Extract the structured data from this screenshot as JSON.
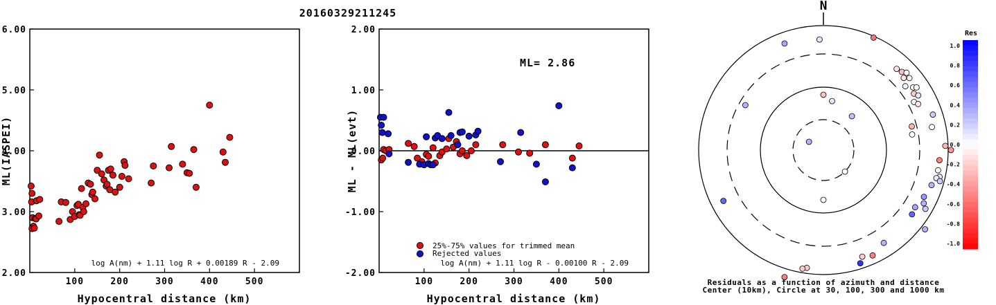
{
  "title": "20160329211245",
  "colors": {
    "red_point": "#dd1111",
    "blue_point": "#1111cc"
  },
  "chart_data": [
    {
      "id": "ml-vs-distance",
      "type": "scatter",
      "xlabel": "Hypocentral distance (km)",
      "ylabel": "ML(IASPEI)",
      "xlim": [
        0,
        600
      ],
      "ylim": [
        2.0,
        6.0
      ],
      "xticks": [
        "100",
        "200",
        "300",
        "400",
        "500"
      ],
      "yticks": [
        "2.00",
        "3.00",
        "4.00",
        "5.00",
        "6.00"
      ],
      "formula": "log A(nm) + 1.11 log R + 0.00189 R - 2.09",
      "series": [
        {
          "points": [
            [
              3,
              3.42
            ],
            [
              5,
              3.3
            ],
            [
              4,
              3.16
            ],
            [
              6,
              2.9
            ],
            [
              8,
              2.76
            ],
            [
              5,
              2.72
            ],
            [
              10,
              2.73
            ],
            [
              12,
              2.89
            ],
            [
              14,
              2.88
            ],
            [
              15,
              3.18
            ],
            [
              20,
              2.93
            ],
            [
              22,
              3.2
            ],
            [
              65,
              2.84
            ],
            [
              70,
              3.16
            ],
            [
              80,
              3.15
            ],
            [
              90,
              2.87
            ],
            [
              95,
              3.0
            ],
            [
              100,
              2.92
            ],
            [
              105,
              3.1
            ],
            [
              108,
              3.12
            ],
            [
              110,
              2.95
            ],
            [
              112,
              2.94
            ],
            [
              118,
              3.07
            ],
            [
              120,
              3.0
            ],
            [
              115,
              3.38
            ],
            [
              125,
              3.13
            ],
            [
              130,
              3.47
            ],
            [
              135,
              3.45
            ],
            [
              138,
              3.28
            ],
            [
              140,
              3.32
            ],
            [
              145,
              3.21
            ],
            [
              150,
              3.68
            ],
            [
              155,
              3.93
            ],
            [
              160,
              3.62
            ],
            [
              165,
              3.52
            ],
            [
              170,
              3.42
            ],
            [
              172,
              3.45
            ],
            [
              175,
              3.68
            ],
            [
              178,
              3.36
            ],
            [
              180,
              3.7
            ],
            [
              185,
              3.6
            ],
            [
              190,
              3.32
            ],
            [
              200,
              3.4
            ],
            [
              205,
              3.58
            ],
            [
              210,
              3.82
            ],
            [
              212,
              3.76
            ],
            [
              220,
              3.54
            ],
            [
              270,
              3.47
            ],
            [
              275,
              3.75
            ],
            [
              310,
              3.72
            ],
            [
              315,
              4.07
            ],
            [
              340,
              3.78
            ],
            [
              350,
              3.64
            ],
            [
              355,
              3.63
            ],
            [
              365,
              4.02
            ],
            [
              370,
              3.4
            ],
            [
              400,
              4.75
            ],
            [
              430,
              3.98
            ],
            [
              435,
              3.81
            ],
            [
              445,
              4.22
            ]
          ]
        }
      ]
    },
    {
      "id": "residual-vs-distance",
      "type": "scatter",
      "xlabel": "Hypocentral distance (km)",
      "ylabel": "ML - ML(evt)",
      "xlim": [
        0,
        600
      ],
      "ylim": [
        -2.0,
        2.0
      ],
      "xticks": [
        "100",
        "200",
        "300",
        "400",
        "500"
      ],
      "yticks": [
        "-2.00",
        "-1.00",
        "0.00",
        "1.00",
        "2.00"
      ],
      "ml_text": "ML= 2.86",
      "formula": "log A(nm) + 1.11 log R - 0.00100 R - 2.09",
      "legend": [
        "25%-75% values for trimmed mean",
        "Rejected values"
      ],
      "series": [
        {
          "name": "25%-75% values for trimmed mean",
          "points": [
            [
              5,
              -0.15
            ],
            [
              8,
              -0.12
            ],
            [
              10,
              0.02
            ],
            [
              15,
              0.0
            ],
            [
              22,
              0.02
            ],
            [
              65,
              0.12
            ],
            [
              78,
              0.07
            ],
            [
              85,
              -0.12
            ],
            [
              95,
              -0.18
            ],
            [
              105,
              -0.06
            ],
            [
              110,
              -0.09
            ],
            [
              120,
              0.05
            ],
            [
              125,
              -0.2
            ],
            [
              135,
              -0.08
            ],
            [
              140,
              -0.02
            ],
            [
              150,
              0.03
            ],
            [
              155,
              0.2
            ],
            [
              165,
              0.06
            ],
            [
              172,
              0.15
            ],
            [
              180,
              -0.05
            ],
            [
              185,
              0.0
            ],
            [
              195,
              -0.08
            ],
            [
              205,
              0.0
            ],
            [
              215,
              0.1
            ],
            [
              275,
              0.1
            ],
            [
              310,
              -0.02
            ],
            [
              335,
              -0.04
            ],
            [
              370,
              0.1
            ],
            [
              430,
              -0.12
            ],
            [
              445,
              0.08
            ]
          ]
        },
        {
          "name": "Rejected values",
          "points": [
            [
              3,
              0.55
            ],
            [
              5,
              0.42
            ],
            [
              7,
              0.3
            ],
            [
              10,
              0.55
            ],
            [
              20,
              0.28
            ],
            [
              22,
              -0.05
            ],
            [
              65,
              -0.19
            ],
            [
              90,
              -0.22
            ],
            [
              100,
              -0.23
            ],
            [
              105,
              0.23
            ],
            [
              110,
              -0.21
            ],
            [
              115,
              -0.23
            ],
            [
              120,
              -0.23
            ],
            [
              125,
              0.21
            ],
            [
              130,
              0.25
            ],
            [
              140,
              0.2
            ],
            [
              155,
              0.63
            ],
            [
              160,
              0.25
            ],
            [
              175,
              0.1
            ],
            [
              180,
              0.3
            ],
            [
              185,
              0.31
            ],
            [
              200,
              0.24
            ],
            [
              215,
              0.26
            ],
            [
              220,
              0.32
            ],
            [
              270,
              -0.18
            ],
            [
              315,
              0.3
            ],
            [
              350,
              -0.22
            ],
            [
              370,
              -0.51
            ],
            [
              400,
              0.74
            ],
            [
              430,
              -0.28
            ]
          ]
        }
      ]
    },
    {
      "id": "azimuth-residual-map",
      "type": "polar-scatter",
      "north_label": "N",
      "caption": [
        "Residuals as a function of azimuth and distance",
        "Center (10km), Circle at 30, 100, 300 and 1000 km"
      ],
      "circles_km": [
        30,
        100,
        300,
        1000
      ],
      "colorbar": {
        "title": "Res",
        "range": [
          -1.0,
          1.0
        ],
        "ticks": [
          "1.0",
          "0.8",
          "0.6",
          "0.4",
          "0.2",
          "0.0",
          "-0.2",
          "-0.4",
          "-0.6",
          "-0.8",
          "-1.0"
        ]
      },
      "stations": [
        [
          -60,
          1.2,
          0.3
        ],
        [
          0,
          4.0,
          -0.25
        ],
        [
          40,
          3.2,
          0.25
        ],
        [
          10,
          3.6,
          0.1
        ],
        [
          135,
          2.2,
          0.0
        ],
        [
          180,
          3.6,
          0.0
        ],
        [
          300,
          6.5,
          0.3
        ],
        [
          340,
          8.2,
          0.35
        ],
        [
          358,
          8.0,
          0.1
        ],
        [
          24,
          8.9,
          -0.55
        ],
        [
          42,
          7.9,
          -0.1
        ],
        [
          45,
          8.0,
          -0.25
        ],
        [
          47,
          8.2,
          0.0
        ],
        [
          48,
          7.8,
          -0.1
        ],
        [
          50,
          8.1,
          -0.05
        ],
        [
          52,
          7.5,
          0.05
        ],
        [
          55,
          7.9,
          -0.05
        ],
        [
          56,
          8.1,
          0.0
        ],
        [
          58,
          7.7,
          -0.2
        ],
        [
          60,
          7.9,
          0.1
        ],
        [
          62,
          7.4,
          0.0
        ],
        [
          64,
          7.6,
          -0.1
        ],
        [
          75,
          6.6,
          -0.3
        ],
        [
          78,
          8.0,
          0.0
        ],
        [
          72,
          8.3,
          0.2
        ],
        [
          80,
          6.5,
          0.0
        ],
        [
          88,
          8.8,
          -0.3
        ],
        [
          90,
          9.2,
          -0.4
        ],
        [
          95,
          8.4,
          -0.5
        ],
        [
          100,
          8.4,
          0.0
        ],
        [
          103,
          8.6,
          0.1
        ],
        [
          104,
          8.4,
          0.1
        ],
        [
          105,
          8.7,
          0.2
        ],
        [
          108,
          8.2,
          0.3
        ],
        [
          115,
          8.0,
          0.4
        ],
        [
          118,
          8.2,
          0.3
        ],
        [
          120,
          8.5,
          0.2
        ],
        [
          122,
          7.8,
          0.35
        ],
        [
          126,
          7.9,
          0.6
        ],
        [
          128,
          9.3,
          0.3
        ],
        [
          147,
          8.0,
          0.3
        ],
        [
          155,
          8.4,
          -0.5
        ],
        [
          160,
          8.2,
          -0.2
        ],
        [
          162,
          8.6,
          0.8
        ],
        [
          188,
          8.6,
          -0.2
        ],
        [
          190,
          8.7,
          -0.2
        ],
        [
          197,
          9.6,
          -0.5
        ],
        [
          243,
          8.1,
          0.6
        ]
      ]
    }
  ]
}
